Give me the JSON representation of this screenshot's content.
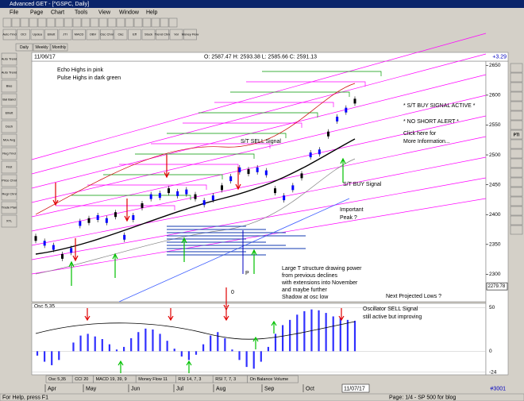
{
  "window": {
    "title": "Advanced GET - [^GSPC, Daily]"
  },
  "menu": [
    "File",
    "Page",
    "Chart",
    "Tools",
    "View",
    "Window",
    "Help"
  ],
  "toolbar": [
    "Auto Trnd",
    "OCI",
    "Updea",
    "Elliott",
    "JTI",
    "MACD",
    "OBV",
    "Osc Chnl",
    "Osc",
    "Eff",
    "Stock",
    "Trend Chnl",
    "Vol",
    "Money Flow"
  ],
  "left_tools": [
    "Auto Trend",
    "Auto Trend",
    "Bias",
    "Bal Band",
    "Elliott",
    "Dsch",
    "Mov Avg",
    "Reg Trnd",
    "First",
    "Price Chnl",
    "Regr Chnl",
    "Trade Plan",
    "XTL"
  ],
  "right_tools": [
    "PTI"
  ],
  "period_tabs": [
    "Daily",
    "Weekly",
    "Monthly"
  ],
  "header": {
    "date": "11/06/17",
    "ohlc": "O: 2587.47   H: 2593.38   L: 2585.66   C: 2591.13",
    "change": "+3.29"
  },
  "price_chart": {
    "ylim": [
      2254,
      2657
    ],
    "yticks": [
      2300,
      2350,
      2400,
      2450,
      2500,
      2550,
      2600,
      2650
    ],
    "last_label": 2279.78,
    "close": [
      2360,
      2352,
      2345,
      2330,
      2340,
      2385,
      2390,
      2395,
      2390,
      2400,
      2362,
      2395,
      2415,
      2430,
      2432,
      2440,
      2435,
      2438,
      2430,
      2420,
      2428,
      2445,
      2460,
      2475,
      2472,
      2475,
      2470,
      2440,
      2428,
      2445,
      2465,
      2500,
      2505,
      2535,
      2560,
      2575,
      2590
    ],
    "annotations": [
      "Echo Highs in pink",
      "Pulse Highs in dark green",
      "S/T SELL Signal",
      "S/T BUY Signal",
      "Important",
      "Peak ?",
      "* S/T BUY SIGNAL ACTIVE *",
      "* NO SHORT ALERT *",
      "Click here for",
      "More Information...",
      "P",
      "0",
      "Large T structure drawing power",
      "from previous declines",
      "with extensions into November",
      "and maybe further",
      "Shadow at osc low",
      "Next Projected Lows ?"
    ]
  },
  "oscillator": {
    "title": "Osc 5,35",
    "ylim": [
      -27,
      55
    ],
    "yticks": [
      50,
      0,
      -24
    ],
    "values": [
      -5,
      -12,
      -16,
      -10,
      0,
      10,
      18,
      20,
      17,
      14,
      8,
      2,
      5,
      15,
      22,
      26,
      25,
      20,
      12,
      3,
      -6,
      -10,
      -4,
      8,
      18,
      22,
      15,
      2,
      -10,
      -18,
      -20,
      -12,
      5,
      20,
      30,
      36,
      42,
      46,
      48,
      47,
      44,
      40,
      38,
      36,
      35
    ],
    "annotations": [
      "Oscillator SELL Signal",
      "still active but improving"
    ]
  },
  "indicator_tabs": [
    "Osc 5,35",
    "CCI 20",
    "MACD 19, 39, 9",
    "Money Flow 11",
    "RSI 14, 7, 3",
    "RSI 7, 7, 3",
    "On Balance Volume"
  ],
  "months": [
    "Apr",
    "May",
    "Jun",
    "Jul",
    "Aug",
    "Sep",
    "Oct"
  ],
  "end_date": "11/07/17",
  "bar_count": "#3001",
  "status": {
    "help": "For Help, press F1",
    "page": "Page: 1/4 - SP 500 for blog"
  }
}
